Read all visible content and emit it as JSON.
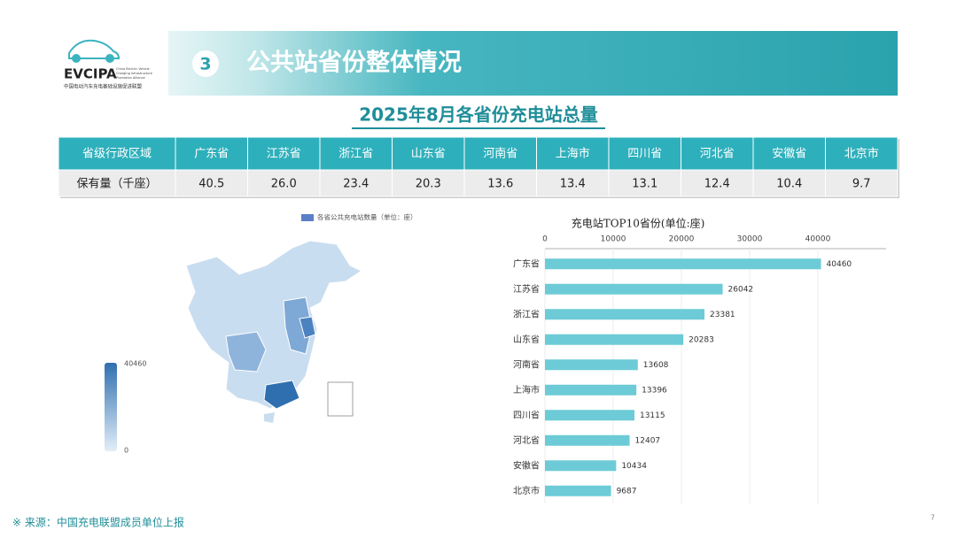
{
  "header": {
    "logo": "EVCIPA",
    "logo_lines": [
      "China Electric Vehicle",
      "Charging Infrastructure",
      "Promotion Alliance"
    ],
    "logo_cn": "中国电动汽车充电基础设施促进联盟",
    "number": "3",
    "title": "公共站省份整体情况"
  },
  "subtitle": "2025年8月各省份充电站总量",
  "table": {
    "header": [
      "省级行政区域",
      "广东省",
      "江苏省",
      "浙江省",
      "山东省",
      "河南省",
      "上海市",
      "四川省",
      "河北省",
      "安徽省",
      "北京市"
    ],
    "rows": [
      [
        "保有量（千座）",
        "40.5",
        "26.0",
        "23.4",
        "20.3",
        "13.6",
        "13.4",
        "13.1",
        "12.4",
        "10.4",
        "9.7"
      ]
    ]
  },
  "map": {
    "legend": "各省公共充电站数量（单位：座）",
    "range": [
      0,
      40460
    ]
  },
  "chart_data": {
    "type": "hbar",
    "title": "充电站TOP10省份(单位:座)",
    "categories": [
      "广东省",
      "江苏省",
      "浙江省",
      "山东省",
      "河南省",
      "上海市",
      "四川省",
      "河北省",
      "安徽省",
      "北京市"
    ],
    "values": [
      40460,
      26042,
      23381,
      20283,
      13608,
      13396,
      13115,
      12407,
      10434,
      9687
    ],
    "color": "#6ccbd6",
    "xlim": [
      0,
      50000
    ],
    "xticks": [
      0,
      10000,
      20000,
      30000,
      40000
    ],
    "grid": true
  },
  "footer": {
    "source": "※ 来源：中国充电联盟成员单位上报",
    "page": "7"
  }
}
